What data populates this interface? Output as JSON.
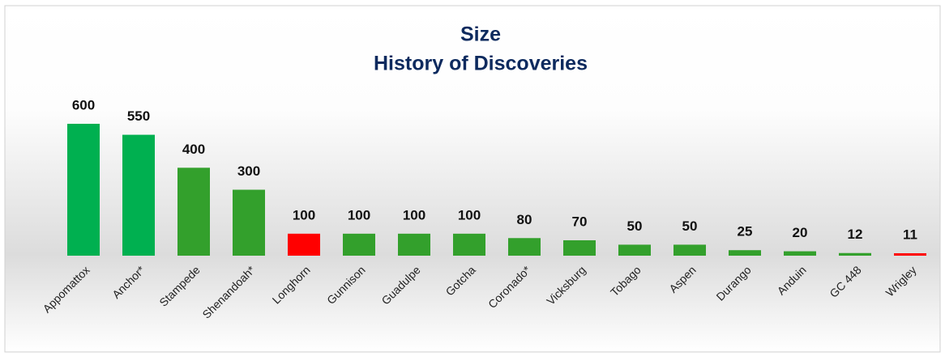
{
  "chart_data": {
    "type": "bar",
    "title": "Size",
    "subtitle": "History of Discoveries",
    "categories": [
      "Appomattox",
      "Anchor*",
      "Stampede",
      "Shenandoah*",
      "Longhorn",
      "Gunnison",
      "Guadulpe",
      "Gotcha",
      "Coronado*",
      "Vicksburg",
      "Tobago",
      "Aspen",
      "Durango",
      "Anduin",
      "GC 448",
      "Wrigley"
    ],
    "values": [
      600,
      550,
      400,
      300,
      100,
      100,
      100,
      100,
      80,
      70,
      50,
      50,
      25,
      20,
      12,
      11
    ],
    "colors": [
      "#00b050",
      "#00b050",
      "#33a02c",
      "#33a02c",
      "#ff0000",
      "#33a02c",
      "#33a02c",
      "#33a02c",
      "#33a02c",
      "#33a02c",
      "#33a02c",
      "#33a02c",
      "#33a02c",
      "#33a02c",
      "#33a02c",
      "#ff0000"
    ]
  }
}
